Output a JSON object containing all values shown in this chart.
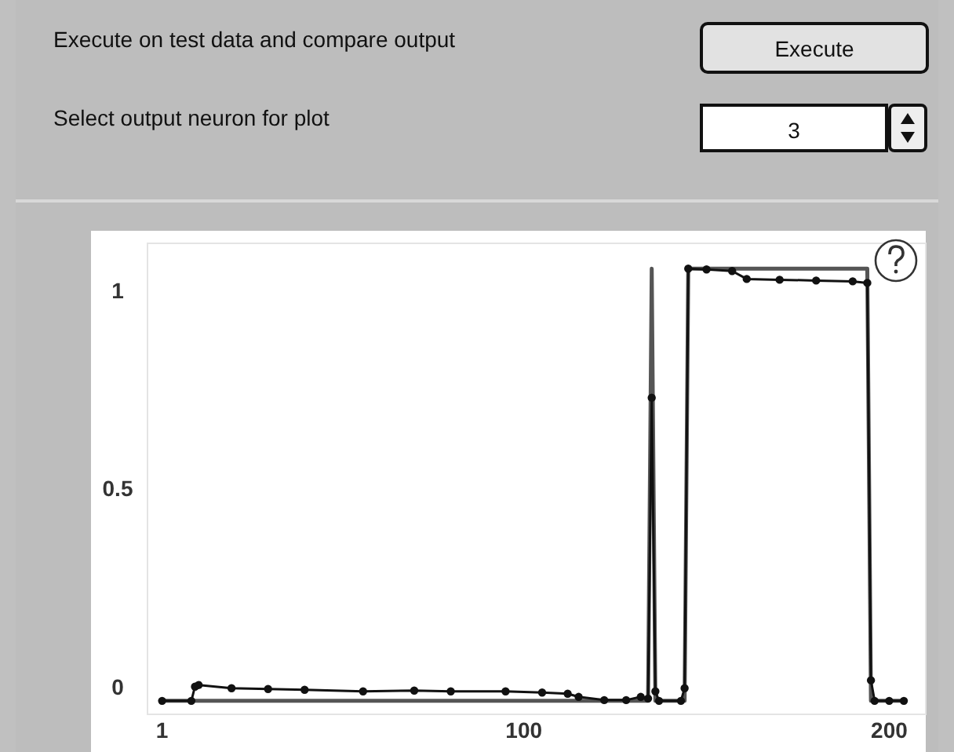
{
  "chart_data": {
    "type": "line",
    "annotations": [
      "Execute on test data and compare output",
      "Execute",
      "Select output neuron for plot",
      "3"
    ],
    "xlim": [
      -3,
      210
    ],
    "ylim": [
      -0.07,
      1.12
    ],
    "xticks": [
      1,
      100,
      200
    ],
    "yticks": [
      0,
      0.5,
      1
    ],
    "grid": false,
    "marker": "circle",
    "line_style": "solid",
    "series": [
      {
        "color": "#555555",
        "marker": "none",
        "x": [
          1,
          134,
          135,
          136,
          144,
          145,
          157,
          161,
          194,
          195,
          204
        ],
        "values": [
          -0.036,
          -0.036,
          1.056,
          -0.036,
          -0.036,
          1.056,
          1.056,
          1.056,
          1.056,
          -0.036,
          -0.036
        ]
      },
      {
        "color": "#111111",
        "x": [
          1,
          9,
          10,
          11,
          20,
          30,
          40,
          56,
          70,
          80,
          95,
          105,
          112,
          115,
          122,
          128,
          132,
          134,
          135,
          136,
          137,
          143,
          144,
          145,
          150,
          157,
          161,
          170,
          180,
          190,
          194,
          195,
          196,
          200,
          204
        ],
        "values": [
          -0.036,
          -0.036,
          0,
          0.004,
          -0.004,
          -0.006,
          -0.008,
          -0.012,
          -0.01,
          -0.012,
          -0.012,
          -0.015,
          -0.018,
          -0.026,
          -0.034,
          -0.034,
          -0.026,
          -0.03,
          0.73,
          -0.012,
          -0.036,
          -0.036,
          -0.004,
          1.056,
          1.054,
          1.05,
          1.03,
          1.028,
          1.026,
          1.024,
          1.02,
          0.016,
          -0.036,
          -0.036,
          -0.036
        ]
      }
    ]
  }
}
